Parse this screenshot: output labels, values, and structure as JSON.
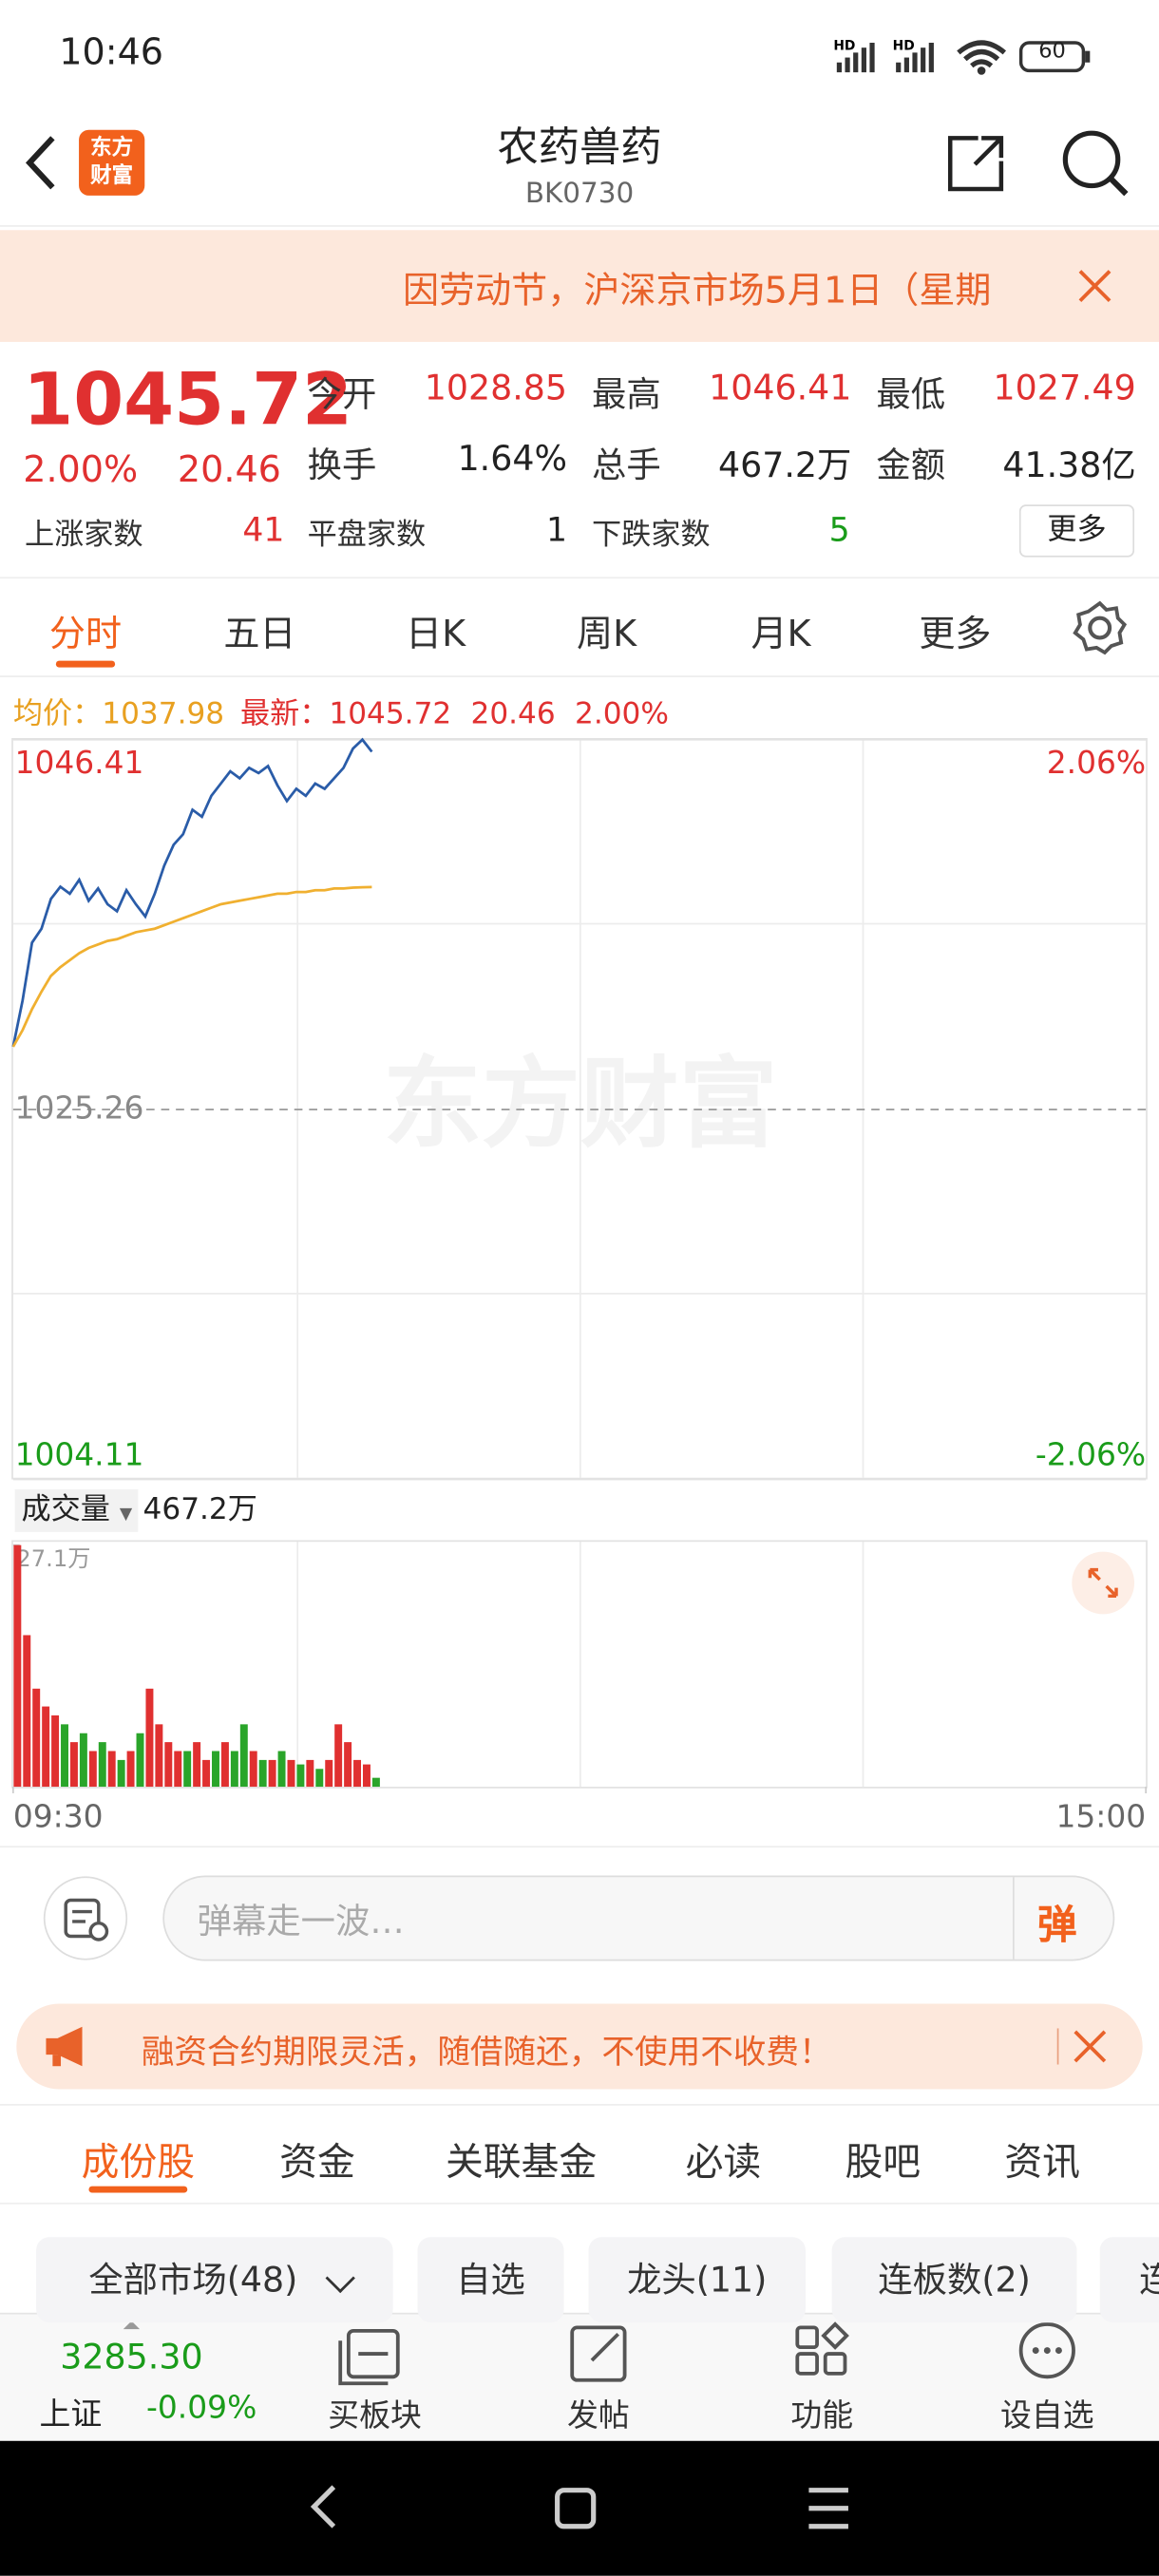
{
  "status_bar": {
    "time": "10:46",
    "battery": "60"
  },
  "header": {
    "logo": [
      "东方",
      "财富"
    ],
    "title": "农药兽药",
    "code": "BK0730"
  },
  "notice": {
    "text": "因劳动节，沪深京市场5月1日（星期"
  },
  "quote": {
    "price": "1045.72",
    "change_pct": "2.00%",
    "change": "20.46",
    "fields": [
      [
        "今开",
        "1028.85"
      ],
      [
        "最高",
        "1046.41"
      ],
      [
        "最低",
        "1027.49"
      ],
      [
        "换手",
        "1.64%"
      ],
      [
        "总手",
        "467.2万"
      ],
      [
        "金额",
        "41.38亿"
      ]
    ],
    "breadth": [
      [
        "上涨家数",
        "41"
      ],
      [
        "平盘家数",
        "1"
      ],
      [
        "下跌家数",
        "5"
      ]
    ],
    "more": "更多"
  },
  "chart_tabs": [
    "分时",
    "五日",
    "日K",
    "周K",
    "月K",
    "更多"
  ],
  "info": {
    "avg_label": "均价：",
    "avg": "1037.98",
    "latest_label": "最新：",
    "latest": "1045.72",
    "change": "20.46",
    "change_pct": "2.00%"
  },
  "watermark": "东方财富",
  "chart_data": [
    {
      "type": "line",
      "xlim": [
        0,
        240
      ],
      "ylim": [
        1004.11,
        1046.41
      ],
      "yticks": [
        1004.11,
        1025.26,
        1046.41
      ],
      "y2lim": [
        -2.06,
        2.06
      ],
      "y2ticks": [
        {
          "value": 2.06,
          "label": "2.06%"
        },
        {
          "value": -2.06,
          "label": "-2.06%"
        }
      ],
      "x": [
        0,
        2,
        4,
        6,
        8,
        10,
        12,
        14,
        16,
        18,
        20,
        22,
        24,
        26,
        28,
        30,
        32,
        34,
        36,
        38,
        40,
        42,
        44,
        46,
        48,
        50,
        52,
        54,
        56,
        58,
        60,
        62,
        64,
        66,
        68,
        70,
        72,
        74,
        76
      ],
      "series": [
        {
          "color": "#2a5ca8",
          "values": [
            1028.85,
            1031.5,
            1034.8,
            1035.6,
            1037.3,
            1038.0,
            1037.6,
            1038.4,
            1037.2,
            1037.9,
            1037.0,
            1036.6,
            1037.8,
            1037.0,
            1036.3,
            1037.6,
            1039.2,
            1040.4,
            1041.0,
            1042.4,
            1042.0,
            1043.2,
            1043.9,
            1044.6,
            1044.2,
            1044.8,
            1044.5,
            1044.9,
            1043.8,
            1042.9,
            1043.6,
            1043.2,
            1043.9,
            1043.6,
            1044.2,
            1044.8,
            1045.9,
            1046.41,
            1045.72
          ]
        },
        {
          "color": "#f0b030",
          "values": [
            1028.85,
            1029.8,
            1031.0,
            1032.0,
            1032.9,
            1033.4,
            1033.8,
            1034.2,
            1034.5,
            1034.7,
            1034.9,
            1035.0,
            1035.2,
            1035.4,
            1035.5,
            1035.6,
            1035.8,
            1036.0,
            1036.2,
            1036.4,
            1036.6,
            1036.8,
            1037.0,
            1037.1,
            1037.2,
            1037.3,
            1037.4,
            1037.5,
            1037.6,
            1037.6,
            1037.7,
            1037.7,
            1037.8,
            1037.8,
            1037.9,
            1037.9,
            1037.95,
            1037.97,
            1037.98
          ]
        }
      ]
    },
    {
      "type": "bar",
      "label": "成交量",
      "total": "467.2万",
      "xlim": [
        0,
        240
      ],
      "xticks": [
        {
          "value": 0,
          "label": "09:30"
        },
        {
          "value": 240,
          "label": "15:00"
        }
      ],
      "ylim": [
        0,
        27.1
      ],
      "yticks": [
        {
          "value": 27.1,
          "label": "27.1万"
        }
      ],
      "x": [
        0,
        2,
        4,
        6,
        8,
        10,
        12,
        14,
        16,
        18,
        20,
        22,
        24,
        26,
        28,
        30,
        32,
        34,
        36,
        38,
        40,
        42,
        44,
        46,
        48,
        50,
        52,
        54,
        56,
        58,
        60,
        62,
        64,
        66,
        68,
        70,
        72,
        74,
        76
      ],
      "values": [
        27.1,
        17,
        11,
        9,
        8,
        7,
        5,
        6,
        4,
        5,
        4,
        3,
        4,
        6,
        11,
        7,
        5,
        4,
        4,
        5,
        3,
        4,
        5,
        4,
        7,
        4,
        3,
        3,
        4,
        3,
        2.5,
        3,
        2,
        3,
        7,
        5,
        3,
        2.5,
        1
      ],
      "colors": [
        "#e03030",
        "#e03030",
        "#e03030",
        "#e03030",
        "#e03030",
        "#2aa52a",
        "#e03030",
        "#2aa52a",
        "#e03030",
        "#2aa52a",
        "#e03030",
        "#2aa52a",
        "#e03030",
        "#2aa52a",
        "#e03030",
        "#e03030",
        "#e03030",
        "#e03030",
        "#2aa52a",
        "#e03030",
        "#e03030",
        "#2aa52a",
        "#e03030",
        "#2aa52a",
        "#2aa52a",
        "#e03030",
        "#2aa52a",
        "#e03030",
        "#2aa52a",
        "#e03030",
        "#2aa52a",
        "#e03030",
        "#2aa52a",
        "#e03030",
        "#e03030",
        "#e03030",
        "#e03030",
        "#e03030",
        "#2aa52a"
      ]
    }
  ],
  "danmaku": {
    "placeholder": "弹幕走一波…",
    "button": "弹"
  },
  "promo": {
    "text": "融资合约期限灵活，随借随还，不使用不收费！"
  },
  "section_tabs": [
    "成份股",
    "资金",
    "关联基金",
    "必读",
    "股吧",
    "资讯"
  ],
  "filters": [
    "全部市场(48)",
    "自选",
    "龙头(11)",
    "连板数(2)",
    "连"
  ],
  "bottom_nav": {
    "index_value": "3285.30",
    "index_name": "上证",
    "index_change": "-0.09%",
    "items": [
      "买板块",
      "发帖",
      "功能",
      "设自选"
    ]
  }
}
